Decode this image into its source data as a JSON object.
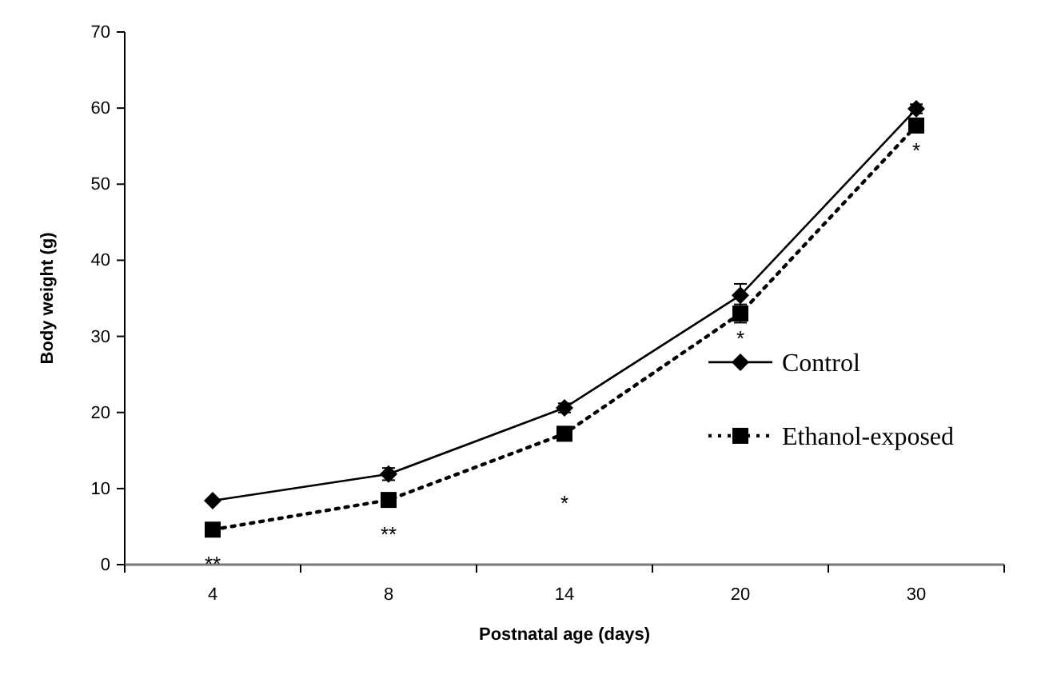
{
  "chart_data": {
    "type": "line",
    "xlabel": "Postnatal age (days)",
    "ylabel": "Body weight (g)",
    "categories": [
      "4",
      "8",
      "14",
      "20",
      "30"
    ],
    "series": [
      {
        "name": "Control",
        "color": "#000000",
        "marker": "diamond",
        "line_style": "solid",
        "values": [
          8.4,
          11.9,
          20.6,
          35.4,
          59.9
        ],
        "errors": [
          null,
          0.8,
          0.6,
          1.5,
          0.6
        ]
      },
      {
        "name": "Ethanol-exposed",
        "color": "#000000",
        "marker": "square",
        "line_style": "dotted",
        "values": [
          4.6,
          8.5,
          17.2,
          33.0,
          57.7
        ],
        "errors": [
          null,
          null,
          null,
          1.2,
          0.8
        ]
      }
    ],
    "ylim": [
      0,
      70
    ],
    "yticks": [
      0,
      10,
      20,
      30,
      40,
      50,
      60,
      70
    ],
    "grid": false,
    "legend": "right",
    "annotations": [
      {
        "text": "**",
        "x": "4",
        "y": 4.6
      },
      {
        "text": "**",
        "x": "8",
        "y": 8.5
      },
      {
        "text": "*",
        "x": "14",
        "y": 17.2
      },
      {
        "text": "*",
        "x": "20",
        "y": 33.0
      },
      {
        "text": "*",
        "x": "30",
        "y": 57.7
      }
    ]
  }
}
